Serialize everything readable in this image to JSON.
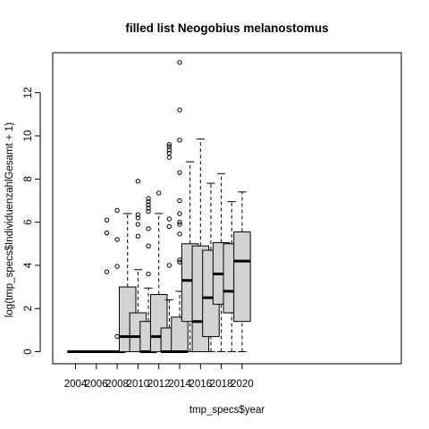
{
  "chart_data": {
    "type": "box",
    "title": "filled list Neogobius melanostomus",
    "xlabel": "tmp_specs$year",
    "ylabel": "log(tmp_specs$IndividuenzahlGesamt + 1)",
    "categories": [
      "2004",
      "2005",
      "2006",
      "2007",
      "2008",
      "2009",
      "2010",
      "2011",
      "2012",
      "2013",
      "2014",
      "2015",
      "2016",
      "2017",
      "2018",
      "2019",
      "2020"
    ],
    "x_tick_labels": [
      "2004",
      "2006",
      "2008",
      "2010",
      "2012",
      "2014",
      "2016",
      "2018",
      "2020"
    ],
    "y_ticks": [
      0,
      2,
      4,
      6,
      8,
      10,
      12
    ],
    "ylim": [
      -0.55,
      14.0
    ],
    "box_fill": "#d3d3d3",
    "series": [
      {
        "category": "2004",
        "whisker_low": 0,
        "q1": 0,
        "median": 0,
        "q3": 0,
        "whisker_high": 0,
        "outliers": []
      },
      {
        "category": "2005",
        "whisker_low": 0,
        "q1": 0,
        "median": 0,
        "q3": 0,
        "whisker_high": 0,
        "outliers": []
      },
      {
        "category": "2006",
        "whisker_low": 0,
        "q1": 0,
        "median": 0,
        "q3": 0,
        "whisker_high": 0,
        "outliers": []
      },
      {
        "category": "2007",
        "whisker_low": 0,
        "q1": 0,
        "median": 0,
        "q3": 0,
        "whisker_high": 0,
        "outliers": [
          3.7,
          5.5,
          6.1
        ]
      },
      {
        "category": "2008",
        "whisker_low": 0,
        "q1": 0,
        "median": 0,
        "q3": 0,
        "whisker_high": 0,
        "outliers": [
          0.7,
          3.95,
          5.2,
          6.55
        ]
      },
      {
        "category": "2009",
        "whisker_low": 0,
        "q1": 0,
        "median": 0.7,
        "q3": 3.0,
        "whisker_high": 6.4,
        "outliers": []
      },
      {
        "category": "2010",
        "whisker_low": 0,
        "q1": 0,
        "median": 0.7,
        "q3": 1.8,
        "whisker_high": 3.8,
        "outliers": [
          5.35,
          5.9,
          6.2,
          6.35,
          7.9
        ]
      },
      {
        "category": "2011",
        "whisker_low": 0,
        "q1": 0,
        "median": 0,
        "q3": 1.4,
        "whisker_high": 2.95,
        "outliers": [
          3.6,
          4.9,
          5.7,
          6.5,
          6.65,
          6.8,
          6.95,
          7.1
        ]
      },
      {
        "category": "2012",
        "whisker_low": 0,
        "q1": 0,
        "median": 0.7,
        "q3": 2.65,
        "whisker_high": 6.4,
        "outliers": [
          7.35
        ]
      },
      {
        "category": "2013",
        "whisker_low": 0,
        "q1": 0,
        "median": 0,
        "q3": 1.1,
        "whisker_high": 2.4,
        "outliers": [
          4.0,
          5.8,
          6.15,
          9.0,
          9.2,
          9.35,
          9.5,
          9.6
        ]
      },
      {
        "category": "2014",
        "whisker_low": 0,
        "q1": 0,
        "median": 0,
        "q3": 1.6,
        "whisker_high": 2.8,
        "outliers": [
          4.15,
          4.25,
          5.45,
          5.9,
          6.0,
          6.4,
          7.0,
          8.3,
          9.8,
          11.2,
          13.4
        ]
      },
      {
        "category": "2015",
        "whisker_low": 0,
        "q1": 1.4,
        "median": 3.3,
        "q3": 5.0,
        "whisker_high": 8.8,
        "outliers": []
      },
      {
        "category": "2016",
        "whisker_low": 0,
        "q1": 0,
        "median": 1.4,
        "q3": 4.9,
        "whisker_high": 9.85,
        "outliers": []
      },
      {
        "category": "2017",
        "whisker_low": 0,
        "q1": 0.7,
        "median": 2.5,
        "q3": 4.7,
        "whisker_high": 7.8,
        "outliers": []
      },
      {
        "category": "2018",
        "whisker_low": 0,
        "q1": 2.2,
        "median": 3.6,
        "q3": 5.05,
        "whisker_high": 8.25,
        "outliers": []
      },
      {
        "category": "2019",
        "whisker_low": 0,
        "q1": 1.8,
        "median": 2.8,
        "q3": 5.0,
        "whisker_high": 6.95,
        "outliers": []
      },
      {
        "category": "2020",
        "whisker_low": 0,
        "q1": 1.4,
        "median": 4.2,
        "q3": 5.55,
        "whisker_high": 7.4,
        "outliers": []
      }
    ]
  }
}
